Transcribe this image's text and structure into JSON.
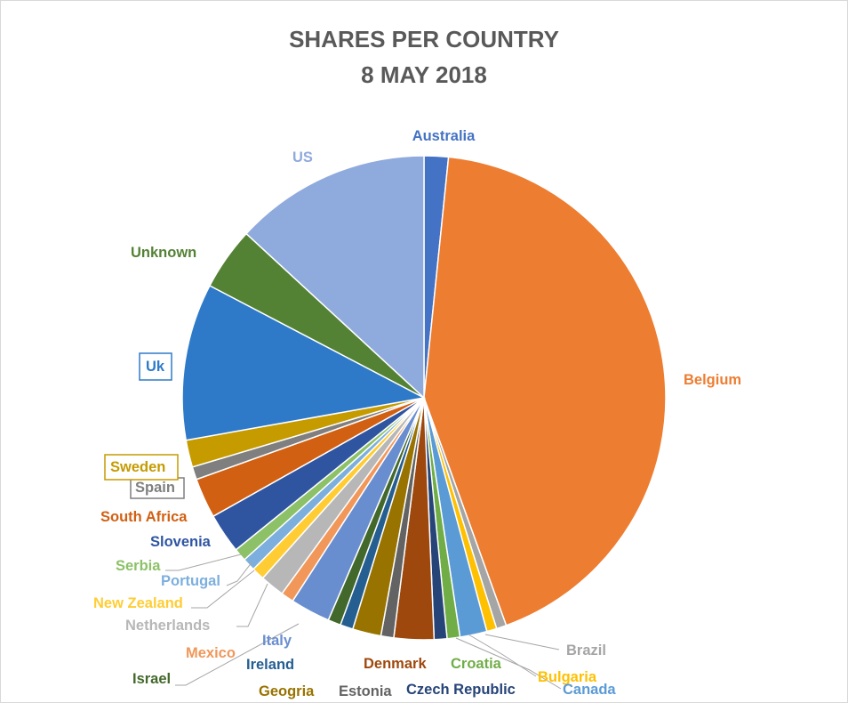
{
  "chart_data": {
    "type": "pie",
    "title": "SHARES PER COUNTRY",
    "subtitle": "8 MAY 2018",
    "legend": "none",
    "slices": [
      {
        "label": "Australia",
        "value": 1.7,
        "color": "#4472c4",
        "text_color": "#4472c4",
        "box": false
      },
      {
        "label": "Belgium",
        "value": 45.0,
        "color": "#ed7d31",
        "text_color": "#ed7d31",
        "box": false
      },
      {
        "label": "Brazil",
        "value": 0.7,
        "color": "#a5a5a5",
        "text_color": "#a5a5a5",
        "box": false
      },
      {
        "label": "Bulgaria",
        "value": 0.7,
        "color": "#ffc000",
        "text_color": "#ffc000",
        "box": false
      },
      {
        "label": "Canada",
        "value": 1.9,
        "color": "#5b9bd5",
        "text_color": "#5b9bd5",
        "box": false
      },
      {
        "label": "Croatia",
        "value": 0.9,
        "color": "#70ad47",
        "text_color": "#70ad47",
        "box": false
      },
      {
        "label": "Czech Republic",
        "value": 0.9,
        "color": "#264478",
        "text_color": "#264478",
        "box": false
      },
      {
        "label": "Denmark",
        "value": 2.8,
        "color": "#9e480e",
        "text_color": "#9e480e",
        "box": false
      },
      {
        "label": "Estonia",
        "value": 0.9,
        "color": "#636363",
        "text_color": "#636363",
        "box": false
      },
      {
        "label": "Geogria",
        "value": 2.0,
        "color": "#997300",
        "text_color": "#997300",
        "box": false
      },
      {
        "label": "Ireland",
        "value": 0.9,
        "color": "#255e91",
        "text_color": "#255e91",
        "box": false
      },
      {
        "label": "Israel",
        "value": 0.9,
        "color": "#43682b",
        "text_color": "#43682b",
        "box": false
      },
      {
        "label": "Italy",
        "value": 2.8,
        "color": "#698ed0",
        "text_color": "#698ed0",
        "box": false
      },
      {
        "label": "Mexico",
        "value": 0.9,
        "color": "#f1975a",
        "text_color": "#f1975a",
        "box": false
      },
      {
        "label": "Netherlands",
        "value": 1.7,
        "color": "#b7b7b7",
        "text_color": "#b7b7b7",
        "box": false
      },
      {
        "label": "New Zealand",
        "value": 0.9,
        "color": "#ffcd33",
        "text_color": "#ffcd33",
        "box": false
      },
      {
        "label": "Portugal",
        "value": 0.9,
        "color": "#7cafdd",
        "text_color": "#7cafdd",
        "box": false
      },
      {
        "label": "Serbia",
        "value": 0.9,
        "color": "#8cc168",
        "text_color": "#8cc168",
        "box": false
      },
      {
        "label": "Slovenia",
        "value": 2.8,
        "color": "#2f55a1",
        "text_color": "#2f55a1",
        "box": false
      },
      {
        "label": "South Africa",
        "value": 2.8,
        "color": "#d26012",
        "text_color": "#d26012",
        "box": false
      },
      {
        "label": "Spain",
        "value": 0.9,
        "color": "#7f7f7f",
        "text_color": "#7f7f7f",
        "box": true
      },
      {
        "label": "Sweden",
        "value": 1.9,
        "color": "#c59b00",
        "text_color": "#c59b00",
        "box": true
      },
      {
        "label": "Uk",
        "value": 11.0,
        "color": "#2e7ac9",
        "text_color": "#2e7ac9",
        "box": true
      },
      {
        "label": "Unknown",
        "value": 4.4,
        "color": "#548235",
        "text_color": "#548235",
        "box": false
      },
      {
        "label": "US",
        "value": 13.8,
        "color": "#8faadc",
        "text_color": "#8faadc",
        "box": false
      }
    ]
  }
}
